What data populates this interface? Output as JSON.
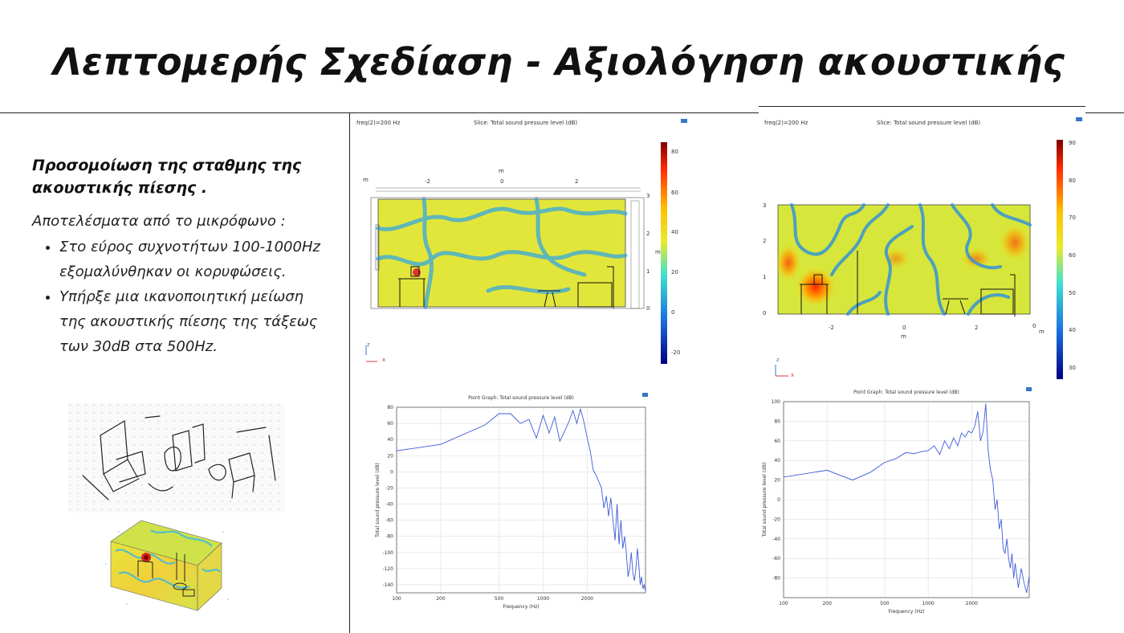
{
  "slide": {
    "title": "Λεπτομερής Σχεδίαση - Αξιολόγηση ακουστικής",
    "subtitle": "Προσομοίωση της σταθμης της ακουστικής πίεσης .",
    "lead": "Αποτελέσματα από το μικρόφωνο :",
    "bullets": [
      "Στο εύρος συχνοτήτων 100-1000Hz εξομαλύνθηκαν οι κορυφώσεις.",
      "Υπήρξε μια ικανοποιητική μείωση της ακουστικής πίεσης της τάξεως των 30dB στα 500Hz."
    ]
  },
  "slices": [
    {
      "freq_label": "freq(2)=200 Hz",
      "title": "Slice: Total sound pressure level (dB)",
      "colorbar_ticks": [
        "80",
        "60",
        "40",
        "20",
        "0",
        "-20"
      ],
      "x_ticks": [
        "-2",
        "0",
        "2"
      ],
      "x_unit": "m",
      "y_ticks": [
        "3",
        "2",
        "1",
        "0"
      ],
      "y_unit": "m",
      "axes": {
        "z": "z",
        "x": "x"
      }
    },
    {
      "freq_label": "freq(2)=200 Hz",
      "title": "Slice: Total sound pressure level (dB)",
      "colorbar_ticks": [
        "90",
        "80",
        "70",
        "60",
        "50",
        "40",
        "30"
      ],
      "x_ticks": [
        "-2",
        "0",
        "2",
        "0"
      ],
      "x_unit": "m",
      "y_ticks": [
        "3",
        "2",
        "1",
        "0"
      ],
      "y_unit": "m",
      "axes": {
        "z": "z",
        "x": "x"
      }
    }
  ],
  "chart_data": [
    {
      "type": "line",
      "title": "Point Graph: Total sound pressure level (dB)",
      "xlabel": "Frequency (Hz)",
      "ylabel": "Total sound pressure level (dB)",
      "xscale": "log",
      "xlim": [
        100,
        5000
      ],
      "ylim": [
        -150,
        80
      ],
      "x_ticks": [
        100,
        200,
        500,
        1000,
        2000
      ],
      "y_ticks": [
        80,
        60,
        40,
        20,
        0,
        -20,
        -40,
        -60,
        -80,
        -100,
        -120,
        -140
      ],
      "grid": true,
      "series_color": "#3d5bd9",
      "x": [
        100,
        200,
        400,
        500,
        600,
        700,
        800,
        900,
        1000,
        1100,
        1200,
        1300,
        1400,
        1500,
        1600,
        1700,
        1800,
        1900,
        2000,
        2100,
        2200,
        2300,
        2400,
        2500,
        2600,
        2700,
        2800,
        2900,
        3000,
        3100,
        3200,
        3300,
        3400,
        3500,
        3600,
        3700,
        3800,
        3900,
        4000,
        4100,
        4200,
        4300,
        4400,
        4500,
        4600,
        4700,
        4800,
        4900,
        5000
      ],
      "y": [
        26,
        34,
        58,
        72,
        72,
        60,
        65,
        42,
        70,
        48,
        68,
        38,
        50,
        62,
        76,
        60,
        78,
        62,
        42,
        25,
        2,
        -4,
        -12,
        -20,
        -45,
        -30,
        -55,
        -32,
        -60,
        -85,
        -40,
        -90,
        -60,
        -95,
        -80,
        -100,
        -130,
        -120,
        -100,
        -125,
        -135,
        -120,
        -95,
        -115,
        -140,
        -130,
        -145,
        -140,
        -148
      ]
    },
    {
      "type": "line",
      "title": "Point Graph: Total sound pressure level (dB)",
      "xlabel": "Frequency (Hz)",
      "ylabel": "Total sound pressure level (dB)",
      "xscale": "log",
      "xlim": [
        100,
        5000
      ],
      "ylim": [
        -100,
        100
      ],
      "x_ticks": [
        100,
        200,
        500,
        1000,
        2000
      ],
      "y_ticks": [
        100,
        80,
        60,
        40,
        20,
        0,
        -20,
        -40,
        -60,
        -80
      ],
      "grid": true,
      "series_color": "#3d5bd9",
      "x": [
        100,
        200,
        300,
        400,
        500,
        600,
        700,
        800,
        900,
        1000,
        1100,
        1200,
        1300,
        1400,
        1500,
        1600,
        1700,
        1800,
        1900,
        2000,
        2100,
        2200,
        2300,
        2400,
        2500,
        2600,
        2700,
        2800,
        2900,
        3000,
        3100,
        3200,
        3300,
        3400,
        3500,
        3600,
        3700,
        3800,
        3900,
        4000,
        4200,
        4400,
        4600,
        4800,
        5000
      ],
      "y": [
        23,
        30,
        20,
        28,
        38,
        42,
        48,
        47,
        49,
        50,
        55,
        46,
        60,
        52,
        63,
        55,
        68,
        64,
        70,
        68,
        75,
        90,
        60,
        70,
        98,
        50,
        30,
        20,
        -10,
        0,
        -30,
        -20,
        -50,
        -55,
        -40,
        -60,
        -70,
        -55,
        -80,
        -65,
        -90,
        -70,
        -85,
        -95,
        -78
      ]
    }
  ]
}
